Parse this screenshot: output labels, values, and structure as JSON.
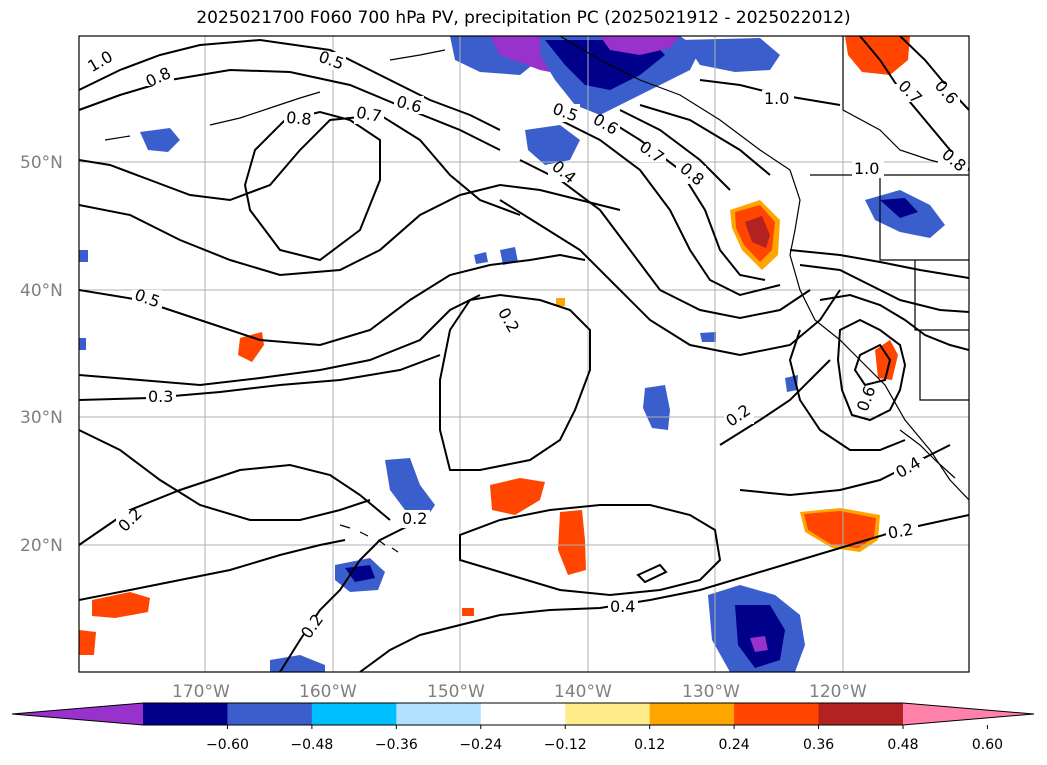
{
  "title": "2025021700 F060 700 hPa PV, precipitation PC (2025021912 - 2025022012)",
  "lat_labels": [
    "50°N",
    "40°N",
    "30°N",
    "20°N"
  ],
  "lon_labels": [
    "170°W",
    "160°W",
    "150°W",
    "140°W",
    "130°W",
    "120°W"
  ],
  "contour_labels": [
    "1.0",
    "0.8",
    "0.5",
    "0.6",
    "0.7",
    "0.8",
    "0.5",
    "0.6",
    "0.7",
    "0.8",
    "0.4",
    "1.0",
    "1.0",
    "0.7",
    "0.6",
    "0.8",
    "0.5",
    "0.2",
    "0.3",
    "0.2",
    "0.2",
    "0.2",
    "0.4",
    "0.2",
    "0.6",
    "0.4",
    "0.2"
  ],
  "colorbar": {
    "colors": [
      "#9932cc",
      "#00008b",
      "#3a5fcd",
      "#00bfff",
      "#b0e2ff",
      "#ffffff",
      "#ffec8b",
      "#ffa500",
      "#ff4500",
      "#b22222",
      "#ff82ab"
    ],
    "tick_labels": [
      "−0.60",
      "−0.48",
      "−0.36",
      "−0.24",
      "−0.12",
      "0.12",
      "0.24",
      "0.36",
      "0.48",
      "0.60"
    ]
  }
}
